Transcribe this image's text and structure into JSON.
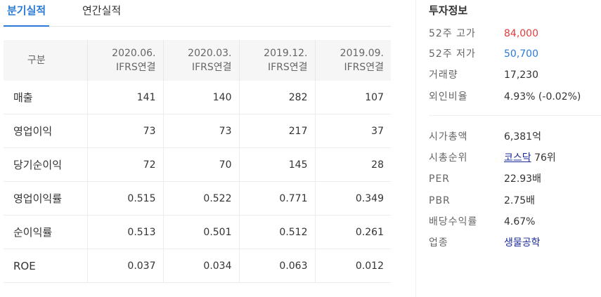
{
  "tabs": [
    {
      "label": "분기실적",
      "active": true
    },
    {
      "label": "연간실적",
      "active": false
    }
  ],
  "table": {
    "header_label": "구분",
    "columns": [
      {
        "date": "2020.06.",
        "std": "IFRS연결"
      },
      {
        "date": "2020.03.",
        "std": "IFRS연결"
      },
      {
        "date": "2019.12.",
        "std": "IFRS연결"
      },
      {
        "date": "2019.09.",
        "std": "IFRS연결"
      }
    ],
    "rows": [
      {
        "name": "매출",
        "values": [
          "141",
          "140",
          "282",
          "107"
        ]
      },
      {
        "name": "영업이익",
        "values": [
          "73",
          "73",
          "217",
          "37"
        ]
      },
      {
        "name": "당기순이익",
        "values": [
          "72",
          "70",
          "145",
          "28"
        ]
      },
      {
        "name": "영업이익률",
        "values": [
          "0.515",
          "0.522",
          "0.771",
          "0.349"
        ]
      },
      {
        "name": "순이익률",
        "values": [
          "0.513",
          "0.501",
          "0.512",
          "0.261"
        ]
      },
      {
        "name": "ROE",
        "values": [
          "0.037",
          "0.034",
          "0.063",
          "0.012"
        ]
      }
    ]
  },
  "invest": {
    "title": "투자정보",
    "high_52_label": "52주 고가",
    "high_52_value": "84,000",
    "low_52_label": "52주 저가",
    "low_52_value": "50,700",
    "volume_label": "거래량",
    "volume_value": "17,230",
    "foreign_label": "외인비율",
    "foreign_value": "4.93% (-0.02%)",
    "market_cap_label": "시가총액",
    "market_cap_value": "6,381억",
    "rank_label": "시총순위",
    "rank_market": "코스닥",
    "rank_value": "76위",
    "per_label": "PER",
    "per_value": "22.93배",
    "pbr_label": "PBR",
    "pbr_value": "2.75배",
    "dividend_label": "배당수익률",
    "dividend_value": "4.67%",
    "sector_label": "업종",
    "sector_value": "생물공학"
  },
  "colors": {
    "accent": "#2a7ad6",
    "high": "#e03c3c",
    "low": "#2a7ad6",
    "link": "#1a2a9a"
  }
}
